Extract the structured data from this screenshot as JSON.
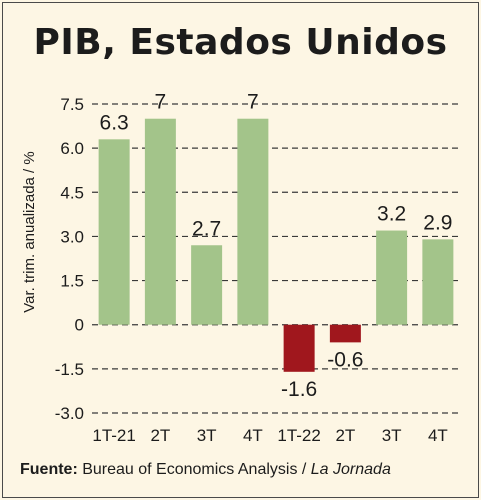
{
  "title": "PIB, Estados Unidos",
  "source": {
    "label": "Fuente:",
    "text": " Bureau of Economics Analysis / ",
    "italic": "La Jornada"
  },
  "colors": {
    "positive": "#a3c48a",
    "negative": "#a0171d",
    "grid": "#3a3a3a",
    "text": "#1c1c1c"
  },
  "chart_data": {
    "type": "bar",
    "ylabel": "Var. trim. anualizada / %",
    "ylim": [
      -3.0,
      7.5
    ],
    "yticks": [
      "7.5",
      "6.0",
      "4.5",
      "3.0",
      "1.5",
      "0",
      "-1.5",
      "-3.0"
    ],
    "grid": "horizontal dashed",
    "categories": [
      "1T-21",
      "2T",
      "3T",
      "4T",
      "1T-22",
      "2T",
      "3T",
      "4T"
    ],
    "values": [
      6.3,
      7,
      2.7,
      7,
      -1.6,
      -0.6,
      3.2,
      2.9
    ],
    "value_labels": [
      "6.3",
      "7",
      "2.7",
      "7",
      "-1.6",
      "-0.6",
      "3.2",
      "2.9"
    ]
  }
}
